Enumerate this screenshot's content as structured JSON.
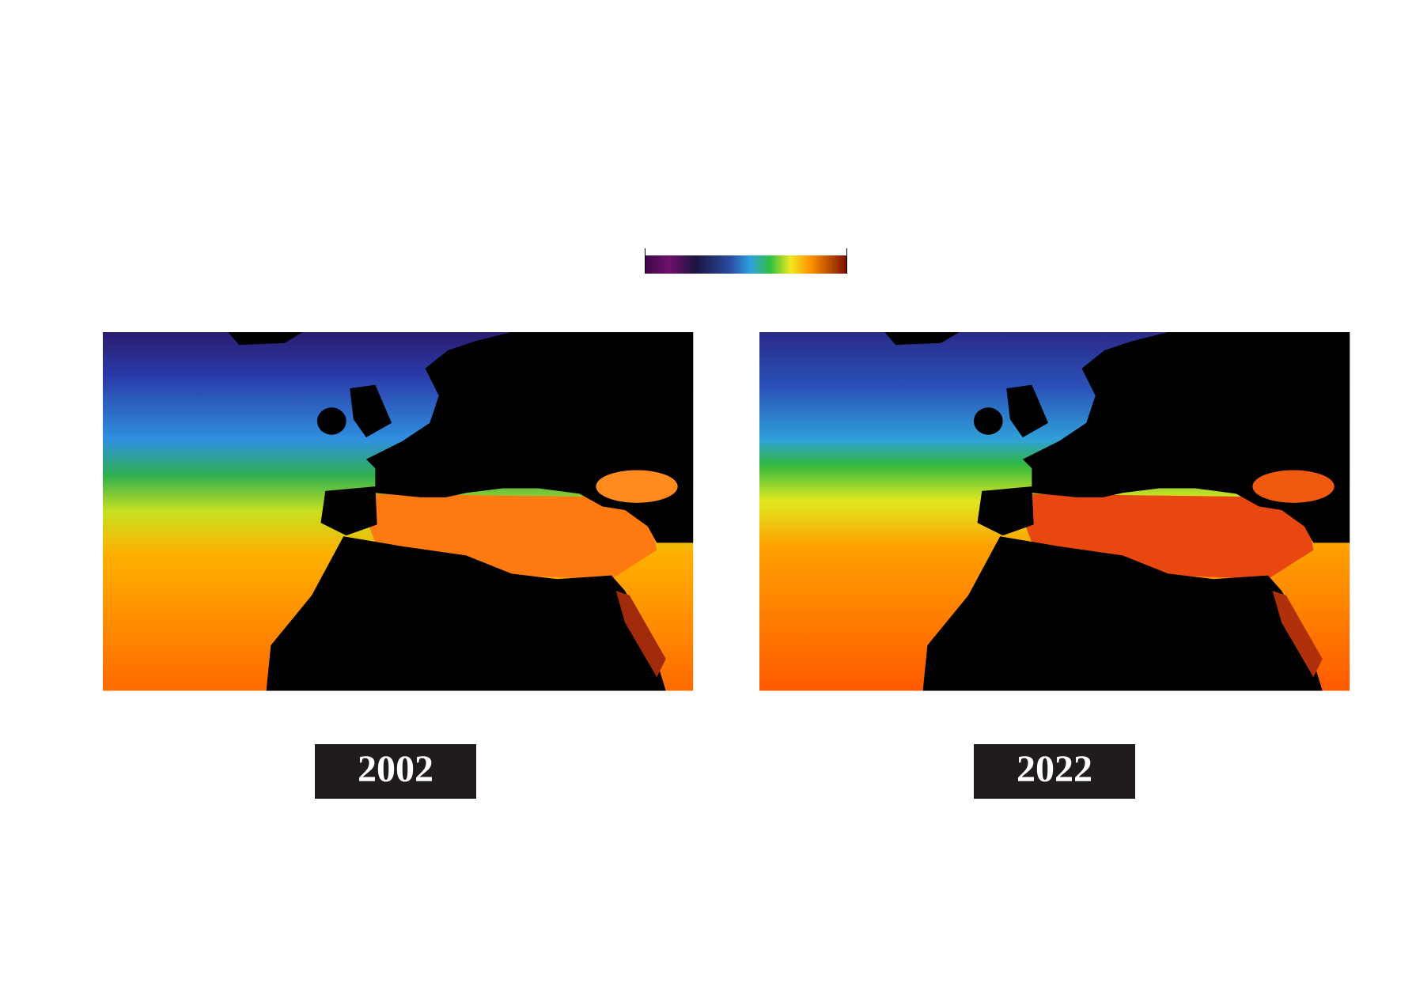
{
  "maps": [
    {
      "label": "2002"
    },
    {
      "label": "2022"
    }
  ]
}
